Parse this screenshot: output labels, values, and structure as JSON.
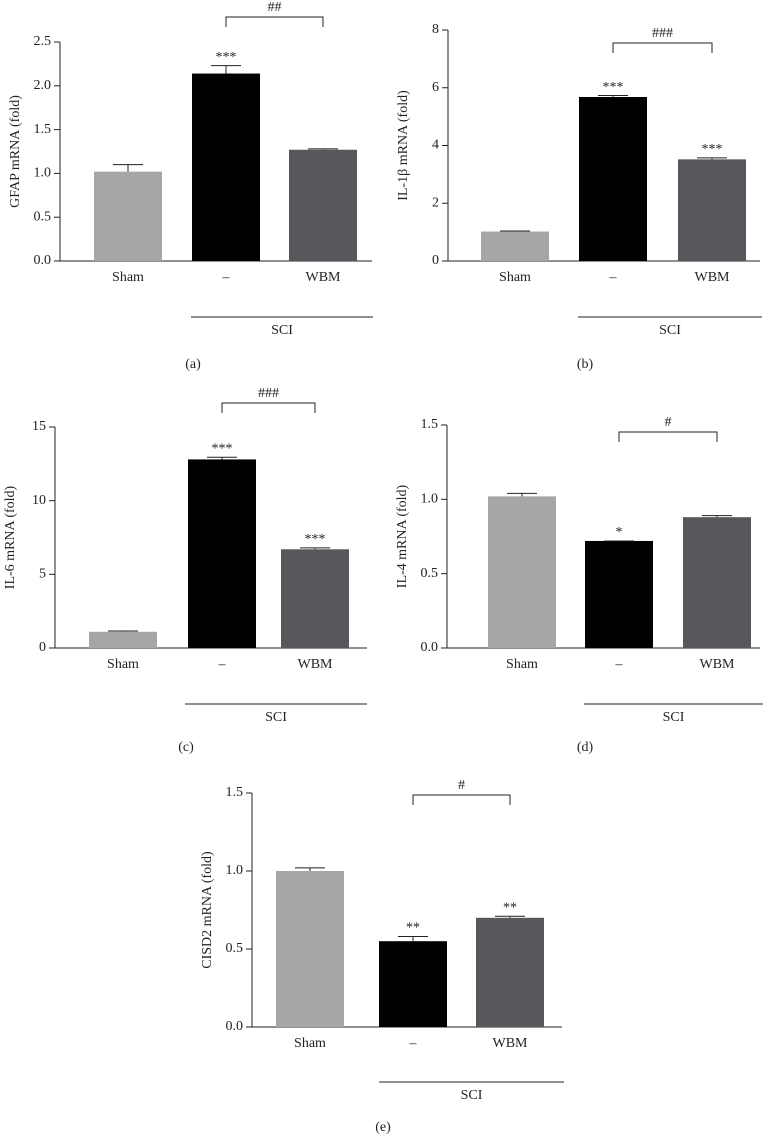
{
  "chart_data": [
    {
      "type": "bar",
      "panel": "(a)",
      "ylabel": "GFAP mRNA (fold)",
      "categories": [
        "Sham",
        "–",
        "WBM"
      ],
      "values": [
        1.02,
        2.14,
        1.27
      ],
      "errors": [
        0.08,
        0.09,
        0.01
      ],
      "annotations": [
        null,
        "***",
        null
      ],
      "comparison": "##",
      "group_label": "SCI",
      "colors": [
        "#a6a6a6",
        "#000000",
        "#57575c"
      ],
      "ylim": [
        0,
        2.5
      ],
      "yticks": [
        {
          "value": 0,
          "label": "0.0"
        },
        0.5,
        {
          "value": 1,
          "label": "1.0"
        },
        1.5,
        {
          "value": 2,
          "label": "2.0"
        },
        2.5
      ]
    },
    {
      "type": "bar",
      "panel": "(b)",
      "ylabel": "IL-1β mRNA (fold)",
      "categories": [
        "Sham",
        "–",
        "WBM"
      ],
      "values": [
        1.02,
        5.68,
        3.52
      ],
      "errors": [
        0.02,
        0.05,
        0.05
      ],
      "annotations": [
        null,
        "***",
        "***"
      ],
      "comparison": "###",
      "group_label": "SCI",
      "colors": [
        "#a6a6a6",
        "#000000",
        "#57575c"
      ],
      "ylim": [
        0,
        8
      ],
      "yticks": [
        0,
        2,
        4,
        6,
        8
      ]
    },
    {
      "type": "bar",
      "panel": "(c)",
      "ylabel": "IL-6 mRNA (fold)",
      "categories": [
        "Sham",
        "–",
        "WBM"
      ],
      "values": [
        1.1,
        12.8,
        6.7
      ],
      "errors": [
        0.05,
        0.15,
        0.1
      ],
      "annotations": [
        null,
        "***",
        "***"
      ],
      "comparison": "###",
      "group_label": "SCI",
      "colors": [
        "#a6a6a6",
        "#000000",
        "#57575c"
      ],
      "ylim": [
        0,
        15
      ],
      "yticks": [
        0,
        5,
        10,
        15
      ]
    },
    {
      "type": "bar",
      "panel": "(d)",
      "ylabel": "IL-4 mRNA (fold)",
      "categories": [
        "Sham",
        "–",
        "WBM"
      ],
      "values": [
        1.02,
        0.72,
        0.88
      ],
      "errors": [
        0.02,
        0,
        0.01
      ],
      "annotations": [
        null,
        "*",
        null
      ],
      "comparison": "#",
      "group_label": "SCI",
      "colors": [
        "#a6a6a6",
        "#000000",
        "#57575c"
      ],
      "ylim": [
        0,
        1.5
      ],
      "yticks": [
        {
          "value": 0,
          "label": "0.0"
        },
        0.5,
        {
          "value": 1,
          "label": "1.0"
        },
        1.5
      ]
    },
    {
      "type": "bar",
      "panel": "(e)",
      "ylabel": "CISD2 mRNA (fold)",
      "categories": [
        "Sham",
        "–",
        "WBM"
      ],
      "values": [
        1.0,
        0.55,
        0.7
      ],
      "errors": [
        0.02,
        0.03,
        0.01
      ],
      "annotations": [
        null,
        "**",
        "**"
      ],
      "comparison": "#",
      "group_label": "SCI",
      "colors": [
        "#a6a6a6",
        "#000000",
        "#57575c"
      ],
      "ylim": [
        0,
        1.5
      ],
      "yticks": [
        {
          "value": 0,
          "label": "0.0"
        },
        0.5,
        {
          "value": 1,
          "label": "1.0"
        },
        1.5
      ]
    }
  ]
}
